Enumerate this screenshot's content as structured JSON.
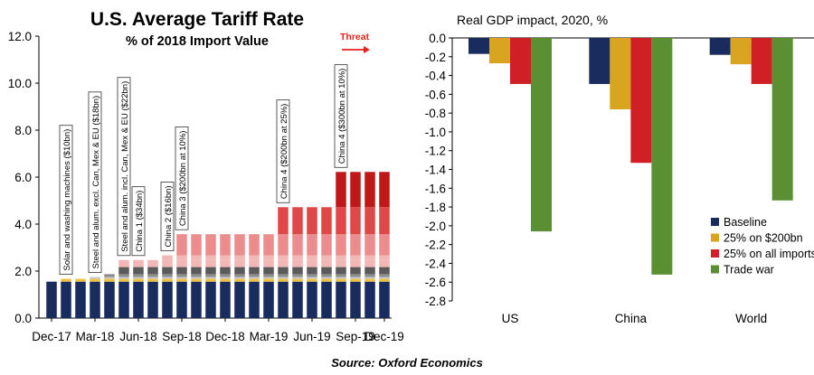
{
  "chart_data": [
    {
      "type": "bar",
      "stacked": true,
      "title": "U.S. Average Tariff Rate",
      "subtitle": "% of 2018 Import Value",
      "ylim": [
        0,
        12
      ],
      "yticks": [
        "0.0",
        "2.0",
        "4.0",
        "6.0",
        "8.0",
        "10.0",
        "12.0"
      ],
      "xtick_labels": [
        "Dec-17",
        "Mar-18",
        "Jun-18",
        "Sep-18",
        "Dec-18",
        "Mar-19",
        "Jun-19",
        "Sep-19",
        "Dec-19"
      ],
      "grid": false,
      "threat_label": "Threat",
      "segment_colors": [
        "#1a2c5e",
        "#f0c040",
        "#c9c9c9",
        "#8c8c8c",
        "#5a5a5a",
        "#f2b6b4",
        "#ec8c8c",
        "#e04848",
        "#c01818"
      ],
      "bars": [
        [
          1.55
        ],
        [
          1.55,
          0.12
        ],
        [
          1.55,
          0.12
        ],
        [
          1.55,
          0.12,
          0.08
        ],
        [
          1.55,
          0.12,
          0.08,
          0.12
        ],
        [
          1.55,
          0.12,
          0.08,
          0.12,
          0.3,
          0.3
        ],
        [
          1.55,
          0.12,
          0.08,
          0.12,
          0.3,
          0.3
        ],
        [
          1.55,
          0.12,
          0.08,
          0.12,
          0.3,
          0.3
        ],
        [
          1.55,
          0.12,
          0.08,
          0.12,
          0.3,
          0.3,
          0.2
        ],
        [
          1.55,
          0.12,
          0.08,
          0.12,
          0.3,
          0.3,
          0.2,
          0.9
        ],
        [
          1.55,
          0.12,
          0.08,
          0.12,
          0.3,
          0.3,
          0.2,
          0.9
        ],
        [
          1.55,
          0.12,
          0.08,
          0.12,
          0.3,
          0.3,
          0.2,
          0.9
        ],
        [
          1.55,
          0.12,
          0.08,
          0.12,
          0.3,
          0.3,
          0.2,
          0.9
        ],
        [
          1.55,
          0.12,
          0.08,
          0.12,
          0.3,
          0.3,
          0.2,
          0.9
        ],
        [
          1.55,
          0.12,
          0.08,
          0.12,
          0.3,
          0.3,
          0.2,
          0.9
        ],
        [
          1.55,
          0.12,
          0.08,
          0.12,
          0.3,
          0.3,
          0.2,
          0.9
        ],
        [
          1.55,
          0.12,
          0.08,
          0.12,
          0.3,
          0.3,
          0.2,
          0.9,
          1.15
        ],
        [
          1.55,
          0.12,
          0.08,
          0.12,
          0.3,
          0.3,
          0.2,
          0.9,
          1.15
        ],
        [
          1.55,
          0.12,
          0.08,
          0.12,
          0.3,
          0.3,
          0.2,
          0.9,
          1.15
        ],
        [
          1.55,
          0.12,
          0.08,
          0.12,
          0.3,
          0.3,
          0.2,
          0.9,
          1.15
        ],
        [
          1.55,
          0.12,
          0.08,
          0.12,
          0.3,
          0.3,
          0.2,
          0.9,
          1.15,
          1.5
        ],
        [
          1.55,
          0.12,
          0.08,
          0.12,
          0.3,
          0.3,
          0.2,
          0.9,
          1.15,
          1.5
        ],
        [
          1.55,
          0.12,
          0.08,
          0.12,
          0.3,
          0.3,
          0.2,
          0.9,
          1.15,
          1.5
        ],
        [
          1.55,
          0.12,
          0.08,
          0.12,
          0.3,
          0.3,
          0.2,
          0.9,
          1.15,
          1.5
        ]
      ],
      "segment_colors_by_index": [
        "#1a2c5e",
        "#f0c040",
        "#c9c9c9",
        "#8c8c8c",
        "#5a5a5a",
        "#f2b6b4",
        "#f2b6b4",
        "#ec8c8c",
        "#e04848",
        "#c01818"
      ],
      "annotations": [
        {
          "bar": 1,
          "text": "Solar and washing machines ($10bn)"
        },
        {
          "bar": 3,
          "text": "Steel and alum. excl. Can, Mex & EU ($18bn)"
        },
        {
          "bar": 5,
          "text": "Steel and alum. incl. Can, Mex & EU ($22bn)"
        },
        {
          "bar": 6,
          "text": "China 1 ($34bn)"
        },
        {
          "bar": 8,
          "text": "China 2 ($16bn)"
        },
        {
          "bar": 9,
          "text": "China 3 ($200bn at 10%)"
        },
        {
          "bar": 16,
          "text": "China 4 ($200bn at 25%)"
        },
        {
          "bar": 20,
          "text": "China 4 ($300bn at 10%)"
        }
      ]
    },
    {
      "type": "bar",
      "title": "Real GDP impact, 2020, %",
      "categories": [
        "US",
        "China",
        "World"
      ],
      "ylim": [
        -2.8,
        0.0
      ],
      "yticks": [
        "0.0",
        "-0.2",
        "-0.4",
        "-0.6",
        "-0.8",
        "-1.0",
        "-1.2",
        "-1.4",
        "-1.6",
        "-1.8",
        "-2.0",
        "-2.2",
        "-2.4",
        "-2.6",
        "-2.8"
      ],
      "series": [
        {
          "name": "Baseline",
          "color": "#1a2c5e",
          "values": [
            -0.17,
            -0.49,
            -0.18
          ]
        },
        {
          "name": "25% on $200bn",
          "color": "#d9a520",
          "values": [
            -0.27,
            -0.76,
            -0.28
          ]
        },
        {
          "name": "25% on all imports",
          "color": "#d11f26",
          "values": [
            -0.49,
            -1.33,
            -0.49
          ]
        },
        {
          "name": "Trade war",
          "color": "#5a8f32",
          "values": [
            -2.06,
            -2.52,
            -1.73
          ]
        }
      ],
      "legend_position": "bottom-right"
    }
  ],
  "source": "Source: Oxford Economics"
}
